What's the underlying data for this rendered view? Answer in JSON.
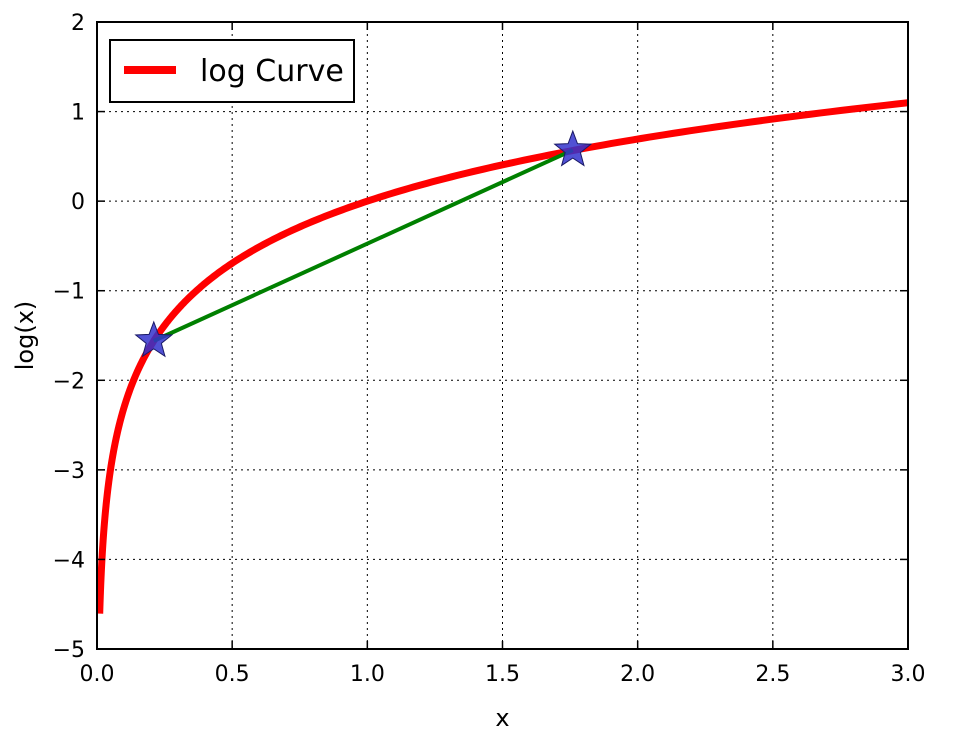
{
  "chart_data": {
    "type": "line",
    "title": "",
    "xlabel": "x",
    "ylabel": "log(x)",
    "xlim": [
      0.0,
      3.0
    ],
    "ylim": [
      -5,
      2
    ],
    "x_ticks": [
      "0.0",
      "0.5",
      "1.0",
      "1.5",
      "2.0",
      "2.5",
      "3.0"
    ],
    "y_ticks": [
      "−5",
      "−4",
      "−3",
      "−2",
      "−1",
      "0",
      "1",
      "2"
    ],
    "grid": true,
    "legend": {
      "position": "top-left",
      "entries": [
        "log Curve"
      ]
    },
    "series": [
      {
        "name": "log Curve",
        "function": "ln(x)",
        "x_range": [
          0.01,
          3.0
        ],
        "color": "#ff0000"
      },
      {
        "color": "#008000",
        "x": [
          0.21,
          1.76
        ],
        "y": [
          -1.56,
          0.57
        ]
      },
      {
        "marker": "star",
        "color": "#3333cc",
        "x": [
          0.21,
          1.76
        ],
        "y": [
          -1.56,
          0.57
        ]
      }
    ]
  }
}
